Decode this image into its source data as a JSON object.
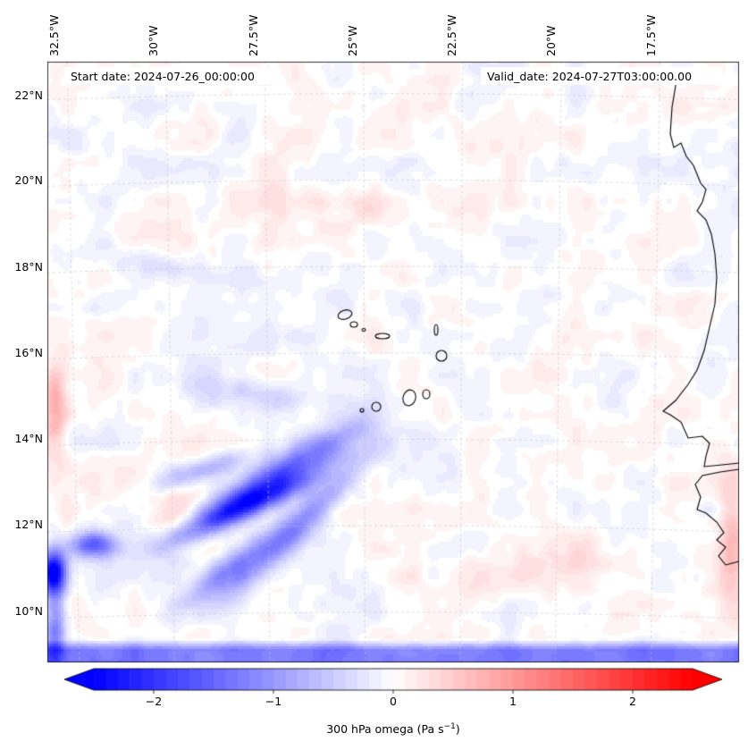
{
  "map": {
    "lon_labels": [
      "32.5°W",
      "30°W",
      "27.5°W",
      "25°W",
      "22.5°W",
      "20°W",
      "17.5°W"
    ],
    "lat_labels": [
      "22°N",
      "20°N",
      "18°N",
      "16°N",
      "14°N",
      "12°N",
      "10°N"
    ],
    "start_date": "Start date: 2024-07-26_00:00:00",
    "valid_date": "Valid_date: 2024-07-27T03:00:00.00",
    "lon_range": [
      -33.0,
      -15.5
    ],
    "lat_range": [
      8.9,
      22.8
    ],
    "colors": {
      "negative": "#0000ff",
      "zero": "#ffffff",
      "positive": "#ff0000",
      "coastline": "#000000",
      "grid": "#c8c8c8"
    }
  },
  "colorbar": {
    "ticks": [
      "−2",
      "−1",
      "0",
      "1",
      "2"
    ],
    "tick_values": [
      -2,
      -1,
      0,
      1,
      2
    ],
    "range": [
      -2.5,
      2.5
    ],
    "label_main": "300 hPa omega (Pa s",
    "label_exp": "−1",
    "label_close": ")"
  },
  "chart_data": {
    "type": "heatmap",
    "variable": "300 hPa omega",
    "units": "Pa s-1",
    "colorbar_range": [
      -2.5,
      2.5
    ],
    "extend": "both",
    "features": [
      {
        "region": "ascent band",
        "lon": [
          -30.5,
          -26.5
        ],
        "lat": [
          11.3,
          13.5
        ],
        "omega": -1.6
      },
      {
        "region": "ascent band",
        "lon": [
          -26.5,
          -24.0
        ],
        "lat": [
          10.5,
          12.5
        ],
        "omega": -1.2
      },
      {
        "region": "southwest corner",
        "lon": [
          -33.0,
          -31.5
        ],
        "lat": [
          10.3,
          11.3
        ],
        "omega": -2.5
      },
      {
        "region": "southern edge",
        "lon": [
          -33.0,
          -15.5
        ],
        "lat": [
          8.9,
          9.2
        ],
        "omega": -1.3
      },
      {
        "region": "western edge",
        "lon": [
          -33.0,
          -32.5
        ],
        "lat": [
          14.3,
          15.6
        ],
        "omega": 0.7
      },
      {
        "region": "eastern coast",
        "lon": [
          -16.3,
          -15.5
        ],
        "lat": [
          9.5,
          12.5
        ],
        "omega": 0.7
      }
    ]
  }
}
